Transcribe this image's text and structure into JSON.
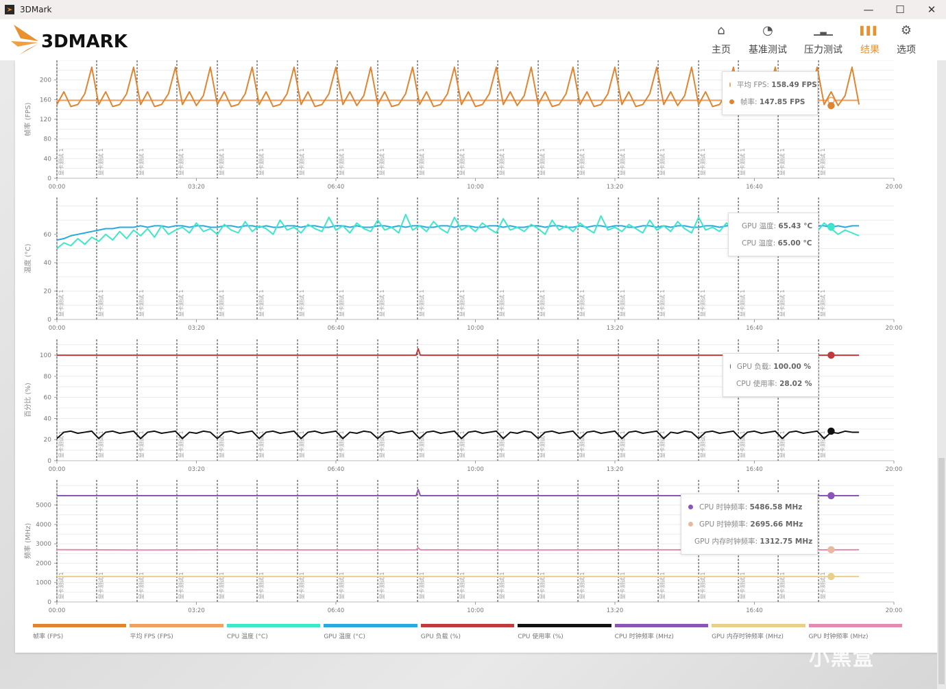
{
  "window": {
    "title": "3DMark",
    "minimize": "—",
    "maximize": "☐",
    "close": "✕"
  },
  "brand": {
    "logo_text": "3DMARK"
  },
  "nav": [
    {
      "label": "主页",
      "icon": "home-icon",
      "glyph": "⌂"
    },
    {
      "label": "基准测试",
      "icon": "gauge-icon",
      "glyph": "◔"
    },
    {
      "label": "压力测试",
      "icon": "bar-chart-icon",
      "glyph": "▁▃▁"
    },
    {
      "label": "结果",
      "icon": "results-icon",
      "glyph": "▌▌▌",
      "active": true
    },
    {
      "label": "选项",
      "icon": "gear-icon",
      "glyph": "⚙"
    }
  ],
  "colors": {
    "accent": "#e8912e"
  },
  "chart_data": {
    "type": "line",
    "x_ticks": [
      "00:00",
      "03:20",
      "06:40",
      "10:00",
      "13:20",
      "16:40",
      "20:00"
    ],
    "xlim": [
      "00:00",
      "20:00"
    ],
    "grid": true,
    "marker_label": "显卡测试 1",
    "marker_times": [
      "00:00",
      "00:57",
      "01:55",
      "02:52",
      "03:50",
      "04:47",
      "05:45",
      "06:42",
      "07:40",
      "08:37",
      "09:35",
      "10:32",
      "11:30",
      "12:27",
      "13:25",
      "14:22",
      "15:20",
      "16:17",
      "17:14",
      "18:12"
    ],
    "hover_time": "18:30",
    "time": [
      "00:00",
      "00:10",
      "00:20",
      "00:30",
      "00:40",
      "00:50",
      "01:00",
      "01:10",
      "01:20",
      "01:30",
      "01:40",
      "01:50",
      "02:00",
      "02:10",
      "02:20",
      "02:30",
      "02:40",
      "02:50",
      "03:00",
      "03:10",
      "03:20",
      "03:30",
      "03:40",
      "03:50",
      "04:00",
      "04:10",
      "04:20",
      "04:30",
      "04:40",
      "04:50",
      "05:00",
      "05:10",
      "05:20",
      "05:30",
      "05:40",
      "05:50",
      "06:00",
      "06:10",
      "06:20",
      "06:30",
      "06:40",
      "06:50",
      "07:00",
      "07:10",
      "07:20",
      "07:30",
      "07:40",
      "07:50",
      "08:00",
      "08:10",
      "08:20",
      "08:30",
      "08:40",
      "08:50",
      "09:00",
      "09:10",
      "09:20",
      "09:30",
      "09:40",
      "09:50",
      "10:00",
      "10:10",
      "10:20",
      "10:30",
      "10:40",
      "10:50",
      "11:00",
      "11:10",
      "11:20",
      "11:30",
      "11:40",
      "11:50",
      "12:00",
      "12:10",
      "12:20",
      "12:30",
      "12:40",
      "12:50",
      "13:00",
      "13:10",
      "13:20",
      "13:30",
      "13:40",
      "13:50",
      "14:00",
      "14:10",
      "14:20",
      "14:30",
      "14:40",
      "14:50",
      "15:00",
      "15:10",
      "15:20",
      "15:30",
      "15:40",
      "15:50",
      "16:00",
      "16:10",
      "16:20",
      "16:30",
      "16:40",
      "16:50",
      "17:00",
      "17:10",
      "17:20",
      "17:30",
      "17:40",
      "17:50",
      "18:00",
      "18:10",
      "18:20",
      "18:30",
      "18:40",
      "18:50",
      "19:00",
      "19:10"
    ],
    "charts": [
      {
        "ylabel": "帧率 (FPS)",
        "ylim": [
          0,
          240
        ],
        "yticks": [
          0,
          40,
          80,
          120,
          160,
          200
        ],
        "series": [
          {
            "name": "帧率",
            "unit": "FPS",
            "color": "#e0842f",
            "values": [
              150,
              176,
              146,
              150,
              172,
              226,
              150,
              176,
              146,
              150,
              172,
              226,
              150,
              176,
              146,
              150,
              172,
              226,
              150,
              176,
              148,
              168,
              226,
              150,
              176,
              146,
              150,
              172,
              226,
              150,
              176,
              146,
              150,
              172,
              226,
              150,
              176,
              146,
              150,
              172,
              226,
              150,
              176,
              148,
              168,
              226,
              150,
              176,
              146,
              150,
              172,
              226,
              150,
              176,
              146,
              150,
              172,
              226,
              150,
              176,
              146,
              150,
              172,
              226,
              150,
              176,
              148,
              168,
              226,
              150,
              176,
              146,
              150,
              172,
              226,
              150,
              176,
              146,
              150,
              172,
              226,
              150,
              176,
              146,
              150,
              172,
              226,
              150,
              176,
              148,
              168,
              226,
              150,
              176,
              146,
              150,
              172,
              226,
              150,
              176,
              146,
              150,
              172,
              226,
              150,
              176,
              146,
              150,
              172,
              226,
              150,
              176,
              148,
              168,
              226,
              150
            ]
          },
          {
            "name": "平均 FPS",
            "unit": "FPS",
            "color": "#f0a060",
            "points": [
              [
                "00:00",
                158.49
              ],
              [
                "19:10",
                158.49
              ]
            ]
          }
        ],
        "tooltip": [
          {
            "label": "平均 FPS",
            "value": "158.49 FPS",
            "color": "#f0a060",
            "hollow": true
          },
          {
            "label": "帧率",
            "value": "147.85 FPS",
            "color": "#e0842f"
          }
        ]
      },
      {
        "ylabel": "温度 (°C)",
        "ylim": [
          0,
          86
        ],
        "yticks": [
          0,
          20,
          40,
          60
        ],
        "series": [
          {
            "name": "CPU 温度",
            "unit": "°C",
            "color": "#3de8c8",
            "values": [
              50,
              54,
              52,
              57,
              53,
              58,
              55,
              60,
              56,
              62,
              57,
              63,
              59,
              64,
              58,
              66,
              60,
              63,
              65,
              61,
              68,
              62,
              64,
              60,
              67,
              63,
              61,
              69,
              62,
              66,
              64,
              60,
              70,
              63,
              65,
              61,
              67,
              64,
              62,
              72,
              63,
              66,
              61,
              68,
              64,
              62,
              70,
              63,
              65,
              61,
              74,
              63,
              66,
              62,
              69,
              64,
              61,
              72,
              63,
              66,
              62,
              68,
              64,
              61,
              71,
              63,
              65,
              62,
              67,
              64,
              60,
              70,
              63,
              66,
              62,
              68,
              64,
              61,
              73,
              63,
              65,
              62,
              67,
              64,
              61,
              70,
              63,
              66,
              62,
              69,
              64,
              61,
              72,
              63,
              65,
              62,
              68,
              64,
              60,
              71,
              63,
              66,
              62,
              67,
              64,
              61,
              70,
              63,
              65,
              62,
              68,
              64,
              60,
              63,
              61,
              59
            ]
          },
          {
            "name": "GPU 温度",
            "unit": "°C",
            "color": "#27a9e1",
            "values": [
              56,
              57,
              59,
              60,
              61,
              62,
              63,
              64,
              64,
              65,
              65,
              65,
              66,
              65,
              66,
              66,
              65,
              66,
              66,
              65,
              66,
              66,
              65,
              65,
              66,
              66,
              65,
              66,
              66,
              65,
              66,
              65,
              65,
              66,
              66,
              65,
              66,
              66,
              65,
              65,
              66,
              66,
              65,
              66,
              65,
              65,
              66,
              66,
              65,
              66,
              65,
              66,
              66,
              65,
              65,
              66,
              66,
              65,
              66,
              66,
              65,
              65,
              66,
              66,
              65,
              66,
              65,
              65,
              66,
              66,
              65,
              66,
              66,
              65,
              65,
              66,
              65,
              66,
              66,
              65,
              66,
              66,
              65,
              65,
              66,
              66,
              65,
              66,
              65,
              66,
              66,
              65,
              65,
              66,
              66,
              65,
              66,
              66,
              65,
              65,
              66,
              65,
              66,
              66,
              65,
              66,
              66,
              65,
              65,
              66,
              66,
              65,
              66,
              65,
              66,
              66
            ]
          }
        ],
        "tooltip": [
          {
            "label": "GPU 温度",
            "value": "65.43 °C",
            "color": "#27a9e1"
          },
          {
            "label": "CPU 温度",
            "value": "65.00 °C",
            "color": "#3de8c8"
          }
        ]
      },
      {
        "ylabel": "百分比 (%)",
        "ylim": [
          0,
          115
        ],
        "yticks": [
          0,
          20,
          40,
          60,
          80,
          100
        ],
        "series": [
          {
            "name": "GPU 负载",
            "unit": "%",
            "color": "#c0393b",
            "points": [
              [
                "00:00",
                100
              ],
              [
                "08:35",
                100
              ],
              [
                "08:38",
                106
              ],
              [
                "08:41",
                100
              ],
              [
                "19:10",
                100
              ]
            ]
          },
          {
            "name": "CPU 使用率",
            "unit": "%",
            "color": "#111111",
            "values": [
              21,
              27,
              28,
              26,
              27,
              28,
              21,
              27,
              28,
              26,
              27,
              28,
              21,
              27,
              28,
              26,
              27,
              28,
              21,
              27,
              26,
              28,
              27,
              21,
              27,
              28,
              26,
              27,
              28,
              21,
              27,
              28,
              26,
              27,
              28,
              21,
              27,
              28,
              26,
              27,
              28,
              21,
              27,
              26,
              28,
              27,
              21,
              27,
              28,
              26,
              27,
              28,
              21,
              27,
              28,
              26,
              27,
              28,
              21,
              27,
              28,
              26,
              27,
              28,
              21,
              27,
              26,
              28,
              27,
              21,
              27,
              28,
              26,
              27,
              28,
              21,
              27,
              28,
              26,
              27,
              28,
              21,
              27,
              28,
              26,
              27,
              28,
              21,
              27,
              26,
              28,
              27,
              21,
              27,
              28,
              26,
              27,
              28,
              21,
              27,
              28,
              26,
              27,
              28,
              21,
              27,
              28,
              26,
              27,
              28,
              21,
              27,
              26,
              28,
              27,
              27
            ]
          }
        ],
        "tooltip": [
          {
            "label": "GPU 负载",
            "value": "100.00 %",
            "color": "#c0393b"
          },
          {
            "label": "CPU 使用率",
            "value": "28.02 %",
            "color": "#111111"
          }
        ]
      },
      {
        "ylabel": "频率 (MHz)",
        "ylim": [
          0,
          6300
        ],
        "yticks": [
          0,
          1000,
          2000,
          3000,
          4000,
          5000
        ],
        "series": [
          {
            "name": "CPU 时钟频率",
            "unit": "MHz",
            "color": "#8b55b5",
            "points": [
              [
                "00:00",
                5487
              ],
              [
                "08:35",
                5487
              ],
              [
                "08:38",
                5800
              ],
              [
                "08:41",
                5487
              ],
              [
                "19:10",
                5487
              ]
            ]
          },
          {
            "name": "GPU 时钟频率",
            "unit": "MHz",
            "color": "#e38bb0",
            "points": [
              [
                "00:00",
                2700
              ],
              [
                "02:00",
                2680
              ],
              [
                "04:00",
                2695
              ],
              [
                "06:00",
                2685
              ],
              [
                "08:35",
                2690
              ],
              [
                "08:38",
                2800
              ],
              [
                "08:41",
                2690
              ],
              [
                "11:00",
                2680
              ],
              [
                "14:00",
                2695
              ],
              [
                "17:00",
                2685
              ],
              [
                "19:10",
                2696
              ]
            ]
          },
          {
            "name": "GPU 内存时钟频率",
            "unit": "MHz",
            "color": "#e8d08a",
            "points": [
              [
                "00:00",
                1313
              ],
              [
                "19:10",
                1313
              ]
            ]
          }
        ],
        "tooltip": [
          {
            "label": "CPU 时钟频率",
            "value": "5486.58 MHz",
            "color": "#8b55b5"
          },
          {
            "label": "GPU 时钟频率",
            "value": "2695.66 MHz",
            "color": "#e8b8a0"
          },
          {
            "label": "GPU 内存时钟频率",
            "value": "1312.75 MHz",
            "color": "#e8d08a"
          }
        ]
      }
    ],
    "legend": [
      {
        "label": "帧率 (FPS)",
        "color": "#e0842f"
      },
      {
        "label": "平均 FPS (FPS)",
        "color": "#f0a060"
      },
      {
        "label": "CPU 温度 (°C)",
        "color": "#3de8c8"
      },
      {
        "label": "GPU 温度 (°C)",
        "color": "#27a9e1"
      },
      {
        "label": "GPU 负载 (%)",
        "color": "#c0393b"
      },
      {
        "label": "CPU 使用率 (%)",
        "color": "#111111"
      },
      {
        "label": "CPU 时钟频率 (MHz)",
        "color": "#8b55b5"
      },
      {
        "label": "GPU 内存时钟频率 (MHz)",
        "color": "#e8d08a"
      },
      {
        "label": "GPU 时钟频率 (MHz)",
        "color": "#e38bb0"
      }
    ]
  },
  "watermark": "小黑盒"
}
